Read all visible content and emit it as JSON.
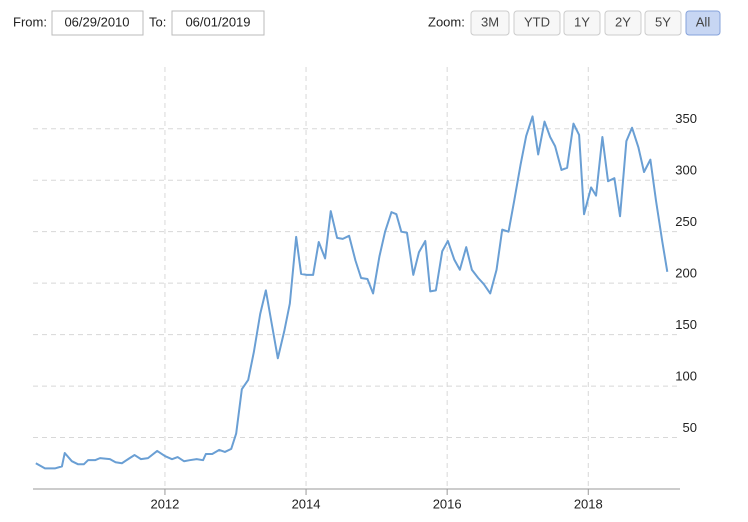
{
  "controls": {
    "from_label": "From:",
    "from_value": "06/29/2010",
    "to_label": "To:",
    "to_value": "06/01/2019",
    "zoom_label": "Zoom:",
    "zoom_buttons": [
      "3M",
      "YTD",
      "1Y",
      "2Y",
      "5Y",
      "All"
    ],
    "selected_zoom": "All"
  },
  "chart_data": {
    "type": "line",
    "color": "#6a9fd4",
    "grid": true,
    "x": [
      2010.17,
      2010.3,
      2010.44,
      2010.54,
      2010.58,
      2010.68,
      2010.77,
      2010.85,
      2010.91,
      2011.01,
      2011.08,
      2011.22,
      2011.3,
      2011.39,
      2011.5,
      2011.57,
      2011.66,
      2011.76,
      2011.89,
      2012.0,
      2012.1,
      2012.18,
      2012.27,
      2012.35,
      2012.45,
      2012.54,
      2012.58,
      2012.67,
      2012.77,
      2012.85,
      2012.94,
      2013.01,
      2013.09,
      2013.18,
      2013.26,
      2013.35,
      2013.43,
      2013.52,
      2013.6,
      2013.69,
      2013.77,
      2013.86,
      2013.93,
      2014.01,
      2014.1,
      2014.18,
      2014.27,
      2014.35,
      2014.44,
      2014.52,
      2014.61,
      2014.7,
      2014.78,
      2014.87,
      2014.95,
      2015.04,
      2015.12,
      2015.21,
      2015.28,
      2015.35,
      2015.43,
      2015.52,
      2015.6,
      2015.69,
      2015.76,
      2015.84,
      2015.93,
      2016.01,
      2016.1,
      2016.18,
      2016.27,
      2016.35,
      2016.44,
      2016.52,
      2016.61,
      2016.7,
      2016.78,
      2016.87,
      2016.95,
      2017.04,
      2017.12,
      2017.21,
      2017.29,
      2017.38,
      2017.46,
      2017.53,
      2017.62,
      2017.7,
      2017.79,
      2017.87,
      2017.94,
      2018.04,
      2018.11,
      2018.2,
      2018.28,
      2018.37,
      2018.45,
      2018.54,
      2018.62,
      2018.71,
      2018.79,
      2018.88,
      2018.96,
      2019.05,
      2019.12
    ],
    "values": [
      25,
      20,
      20,
      22,
      35,
      27,
      24,
      24,
      28,
      28,
      30,
      29,
      26,
      25,
      30,
      33,
      29,
      30,
      37,
      32,
      29,
      31,
      27,
      28,
      29,
      28,
      34,
      34,
      38,
      36,
      39,
      54,
      97,
      106,
      133,
      170,
      193,
      158,
      127,
      153,
      180,
      245,
      209,
      208,
      208,
      240,
      224,
      270,
      244,
      243,
      246,
      222,
      205,
      204,
      190,
      226,
      250,
      269,
      267,
      250,
      249,
      208,
      230,
      241,
      192,
      193,
      231,
      241,
      223,
      213,
      235,
      213,
      205,
      199,
      190,
      213,
      252,
      250,
      280,
      315,
      343,
      362,
      325,
      357,
      342,
      333,
      310,
      312,
      355,
      344,
      267,
      293,
      285,
      342,
      299,
      302,
      265,
      338,
      351,
      332,
      308,
      320,
      280,
      240,
      211
    ],
    "xlim": [
      2010.13,
      2019.3
    ],
    "xticks": [
      2012,
      2014,
      2016,
      2018
    ],
    "ylim": [
      0,
      410
    ],
    "yticks": [
      50,
      100,
      150,
      200,
      250,
      300,
      350
    ]
  }
}
